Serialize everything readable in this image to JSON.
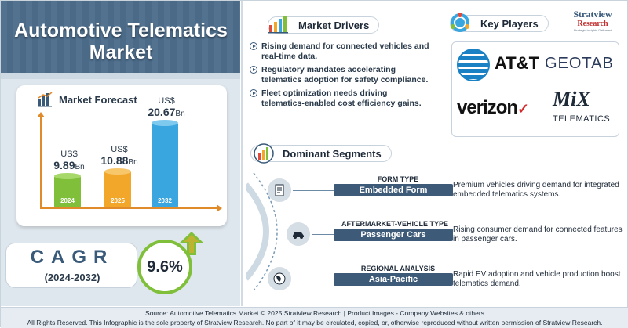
{
  "title": "Automotive Telematics Market",
  "forecast": {
    "heading": "Market Forecast",
    "bars": [
      {
        "currency": "US$",
        "value": "9.89",
        "unit": "Bn",
        "year": "2024",
        "amount": 9.89
      },
      {
        "currency": "US$",
        "value": "10.88",
        "unit": "Bn",
        "year": "2025",
        "amount": 10.88
      },
      {
        "currency": "US$",
        "value": "20.67",
        "unit": "Bn",
        "year": "2032",
        "amount": 20.67
      }
    ],
    "colors": [
      "#7fbf3a",
      "#f2a72a",
      "#3aa6e0"
    ]
  },
  "cagr": {
    "label": "CAGR",
    "range": "(2024-2032)",
    "value": "9.6%"
  },
  "drivers": {
    "heading": "Market Drivers",
    "items": [
      "Rising demand for connected vehicles and real-time data.",
      "Regulatory mandates accelerating telematics adoption for safety compliance.",
      "Fleet optimization needs driving telematics-enabled cost efficiency gains."
    ]
  },
  "players": {
    "heading": "Key Players",
    "brand_name": "Stratview",
    "brand_sub": "Research",
    "brand_tag": "Strategic Insights Delivered",
    "logos": {
      "att": "AT&T",
      "geotab": "GEOTAB",
      "verizon": "verizon",
      "mix": "MiX",
      "mix_sub": "TELEMATICS"
    }
  },
  "segments": {
    "heading": "Dominant Segments",
    "items": [
      {
        "type": "FORM TYPE",
        "value": "Embedded Form",
        "desc": "Premium vehicles driving demand for integrated embedded telematics systems.",
        "icon": "document-icon"
      },
      {
        "type": "AFTERMARKET-VEHICLE TYPE",
        "value": "Passenger Cars",
        "desc": "Rising consumer demand for connected features in passenger cars.",
        "icon": "car-icon"
      },
      {
        "type": "REGIONAL ANALYSIS",
        "value": "Asia-Pacific",
        "desc": "Rapid EV adoption and vehicle production boost telematics demand.",
        "icon": "globe-icon"
      }
    ]
  },
  "footer": {
    "source": "Source:  Automotive Telematics Market © 2025 Stratview Research | Product Images - Company Websites & others",
    "rights": "All Rights Reserved. This Infographic is the sole property of Stratview Research. No part of it may be circulated, copied, or, otherwise reproduced without written permission of Stratview Research."
  }
}
